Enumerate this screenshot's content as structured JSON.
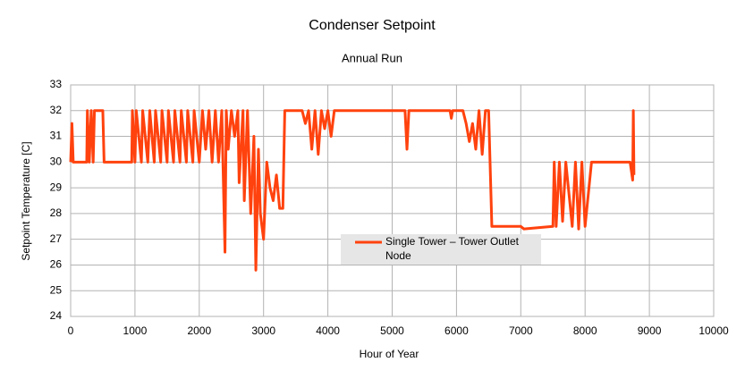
{
  "chart_data": {
    "type": "line",
    "title": "Condenser Setpoint",
    "subtitle": "Annual Run",
    "x_label": "Hour of Year",
    "y_label": "Setpoint Temperature [C]",
    "xlim": [
      0,
      10000
    ],
    "xticks": [
      0,
      1000,
      2000,
      3000,
      4000,
      5000,
      6000,
      7000,
      8000,
      9000,
      10000
    ],
    "ylim": [
      24,
      33
    ],
    "yticks": [
      24,
      25,
      26,
      27,
      28,
      29,
      30,
      31,
      32,
      33
    ],
    "grid": true,
    "legend_position": "center",
    "x": [
      0,
      20,
      40,
      250,
      260,
      290,
      320,
      350,
      370,
      500,
      520,
      950,
      960,
      1000,
      1020,
      1100,
      1120,
      1200,
      1230,
      1300,
      1320,
      1400,
      1420,
      1500,
      1520,
      1600,
      1620,
      1700,
      1720,
      1800,
      1820,
      1900,
      1920,
      2000,
      2050,
      2100,
      2150,
      2200,
      2250,
      2300,
      2350,
      2400,
      2420,
      2450,
      2500,
      2550,
      2600,
      2620,
      2680,
      2700,
      2750,
      2800,
      2850,
      2880,
      2920,
      2950,
      3000,
      3050,
      3100,
      3150,
      3200,
      3250,
      3300,
      3330,
      3400,
      3600,
      3650,
      3700,
      3750,
      3800,
      3850,
      3900,
      3950,
      4000,
      4050,
      4100,
      5200,
      5230,
      5260,
      5900,
      5920,
      5940,
      6100,
      6150,
      6200,
      6250,
      6300,
      6350,
      6400,
      6450,
      6500,
      6550,
      7000,
      7050,
      7500,
      7520,
      7550,
      7600,
      7650,
      7700,
      7800,
      7850,
      7900,
      7950,
      8000,
      8100,
      8200,
      8300,
      8400,
      8500,
      8600,
      8700,
      8740,
      8750,
      8760
    ],
    "series": [
      {
        "name": "Single Tower – Tower Outlet Node",
        "color": "#ff420e",
        "values": [
          30,
          31.5,
          30,
          30,
          32,
          30,
          32,
          30,
          32,
          32,
          30,
          30,
          32,
          30,
          32,
          30,
          32,
          30,
          32,
          30,
          32,
          30,
          32,
          30,
          32,
          30,
          32,
          30,
          32,
          30,
          32,
          30,
          32,
          30,
          32,
          30.5,
          32,
          30,
          32,
          30,
          32,
          26.5,
          32,
          30.5,
          32,
          31,
          32,
          29.2,
          32,
          28.5,
          32,
          28,
          31,
          25.8,
          30.5,
          28,
          27,
          30,
          29,
          28.5,
          29.5,
          28.2,
          28.2,
          32,
          32,
          32,
          31.5,
          32,
          30.5,
          32,
          30.3,
          32,
          31.3,
          32,
          31,
          32,
          32,
          30.5,
          32,
          32,
          31.7,
          32,
          32,
          31.5,
          30.8,
          31.5,
          30.5,
          32,
          30.3,
          32,
          32,
          27.5,
          27.5,
          27.4,
          27.5,
          30,
          27.5,
          30,
          27.7,
          30,
          27.5,
          30,
          27.4,
          30,
          27.5,
          30,
          30,
          30,
          30,
          30,
          30,
          30,
          29.3,
          32,
          29.5
        ]
      }
    ]
  }
}
